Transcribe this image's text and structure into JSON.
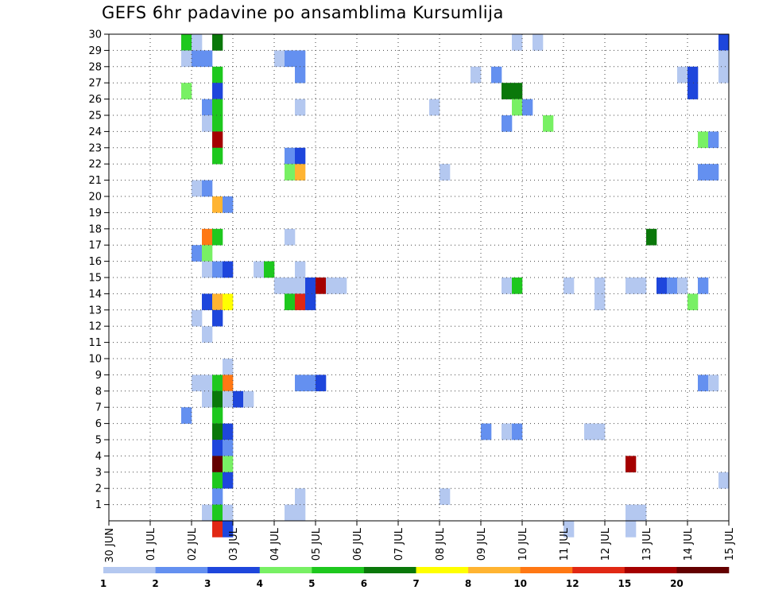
{
  "chart_data": {
    "type": "heatmap",
    "title": "GEFS 6hr padavine po ansamblima Kursumlija",
    "xlabel": "",
    "ylabel": "",
    "x_tick_labels": [
      "30 JUN",
      "01 JUL",
      "02 JUL",
      "03 JUL",
      "04 JUL",
      "05 JUL",
      "06 JUL",
      "07 JUL",
      "08 JUL",
      "09 JUL",
      "10 JUL",
      "11 JUL",
      "12 JUL",
      "13 JUL",
      "14 JUL",
      "15 JUL"
    ],
    "y_tick_labels": [
      "1",
      "2",
      "3",
      "4",
      "5",
      "6",
      "7",
      "8",
      "9",
      "10",
      "11",
      "12",
      "13",
      "14",
      "15",
      "16",
      "17",
      "18",
      "19",
      "20",
      "21",
      "22",
      "23",
      "24",
      "25",
      "26",
      "27",
      "28",
      "29",
      "30"
    ],
    "x_unit": "6-hour step from 30 JUN 00Z",
    "xlim": [
      0,
      60
    ],
    "ylim": [
      0,
      30
    ],
    "grid": true,
    "legend": "bottom",
    "colorbar_labels": [
      "1",
      "2",
      "3",
      "4",
      "5",
      "6",
      "7",
      "8",
      "10",
      "12",
      "15",
      "20"
    ],
    "colorbar_colors": [
      "#b4c8f0",
      "#6490f0",
      "#1e46dc",
      "#78f064",
      "#1ec81e",
      "#0a780a",
      "#ffff00",
      "#ffb432",
      "#ff7814",
      "#e12814",
      "#a50000",
      "#640000"
    ],
    "cells": [
      [
        7,
        30,
        4
      ],
      [
        8,
        30,
        0
      ],
      [
        10,
        30,
        5
      ],
      [
        39,
        30,
        0
      ],
      [
        41,
        30,
        0
      ],
      [
        59,
        30,
        2
      ],
      [
        7,
        29,
        0
      ],
      [
        8,
        29,
        1
      ],
      [
        9,
        29,
        1
      ],
      [
        16,
        29,
        0
      ],
      [
        17,
        29,
        1
      ],
      [
        18,
        29,
        1
      ],
      [
        59,
        29,
        0
      ],
      [
        10,
        28,
        4
      ],
      [
        18,
        28,
        1
      ],
      [
        35,
        28,
        0
      ],
      [
        37,
        28,
        1
      ],
      [
        55,
        28,
        0
      ],
      [
        56,
        28,
        2
      ],
      [
        59,
        28,
        0
      ],
      [
        7,
        27,
        3
      ],
      [
        10,
        27,
        2
      ],
      [
        38,
        27,
        5
      ],
      [
        39,
        27,
        5
      ],
      [
        56,
        27,
        2
      ],
      [
        9,
        26,
        1
      ],
      [
        10,
        26,
        4
      ],
      [
        18,
        26,
        0
      ],
      [
        31,
        26,
        0
      ],
      [
        39,
        26,
        3
      ],
      [
        40,
        26,
        1
      ],
      [
        9,
        25,
        0
      ],
      [
        10,
        25,
        4
      ],
      [
        38,
        25,
        1
      ],
      [
        42,
        25,
        3
      ],
      [
        10,
        24,
        10
      ],
      [
        57,
        24,
        3
      ],
      [
        58,
        24,
        1
      ],
      [
        10,
        23,
        4
      ],
      [
        17,
        23,
        1
      ],
      [
        18,
        23,
        2
      ],
      [
        17,
        22,
        3
      ],
      [
        18,
        22,
        7
      ],
      [
        32,
        22,
        0
      ],
      [
        57,
        22,
        1
      ],
      [
        58,
        22,
        1
      ],
      [
        8,
        21,
        0
      ],
      [
        9,
        21,
        1
      ],
      [
        10,
        20,
        7
      ],
      [
        11,
        20,
        1
      ],
      [
        9,
        18,
        8
      ],
      [
        10,
        18,
        4
      ],
      [
        17,
        18,
        0
      ],
      [
        52,
        18,
        5
      ],
      [
        8,
        17,
        1
      ],
      [
        9,
        17,
        3
      ],
      [
        9,
        16,
        0
      ],
      [
        10,
        16,
        1
      ],
      [
        11,
        16,
        2
      ],
      [
        14,
        16,
        0
      ],
      [
        15,
        16,
        4
      ],
      [
        18,
        16,
        0
      ],
      [
        16,
        15,
        0
      ],
      [
        17,
        15,
        0
      ],
      [
        18,
        15,
        0
      ],
      [
        19,
        15,
        2
      ],
      [
        20,
        15,
        10
      ],
      [
        21,
        15,
        0
      ],
      [
        22,
        15,
        0
      ],
      [
        38,
        15,
        0
      ],
      [
        39,
        15,
        4
      ],
      [
        44,
        15,
        0
      ],
      [
        47,
        15,
        0
      ],
      [
        50,
        15,
        0
      ],
      [
        51,
        15,
        0
      ],
      [
        53,
        15,
        2
      ],
      [
        54,
        15,
        1
      ],
      [
        55,
        15,
        0
      ],
      [
        57,
        15,
        1
      ],
      [
        9,
        14,
        2
      ],
      [
        10,
        14,
        7
      ],
      [
        11,
        14,
        6
      ],
      [
        17,
        14,
        4
      ],
      [
        18,
        14,
        9
      ],
      [
        19,
        14,
        2
      ],
      [
        47,
        14,
        0
      ],
      [
        56,
        14,
        3
      ],
      [
        8,
        13,
        0
      ],
      [
        10,
        13,
        2
      ],
      [
        9,
        12,
        0
      ],
      [
        11,
        10,
        0
      ],
      [
        8,
        9,
        0
      ],
      [
        9,
        9,
        0
      ],
      [
        10,
        9,
        4
      ],
      [
        11,
        9,
        8
      ],
      [
        18,
        9,
        1
      ],
      [
        19,
        9,
        1
      ],
      [
        20,
        9,
        2
      ],
      [
        57,
        9,
        1
      ],
      [
        58,
        9,
        0
      ],
      [
        9,
        8,
        0
      ],
      [
        10,
        8,
        5
      ],
      [
        11,
        8,
        0
      ],
      [
        12,
        8,
        2
      ],
      [
        13,
        8,
        0
      ],
      [
        7,
        7,
        1
      ],
      [
        10,
        7,
        4
      ],
      [
        10,
        6,
        5
      ],
      [
        11,
        6,
        2
      ],
      [
        36,
        6,
        1
      ],
      [
        38,
        6,
        0
      ],
      [
        39,
        6,
        1
      ],
      [
        46,
        6,
        0
      ],
      [
        47,
        6,
        0
      ],
      [
        10,
        5,
        2
      ],
      [
        11,
        5,
        1
      ],
      [
        10,
        4,
        11
      ],
      [
        11,
        4,
        3
      ],
      [
        50,
        4,
        10
      ],
      [
        10,
        3,
        4
      ],
      [
        11,
        3,
        2
      ],
      [
        59,
        3,
        0
      ],
      [
        10,
        2,
        1
      ],
      [
        18,
        2,
        0
      ],
      [
        32,
        2,
        0
      ],
      [
        9,
        1,
        0
      ],
      [
        10,
        1,
        4
      ],
      [
        11,
        1,
        0
      ],
      [
        17,
        1,
        0
      ],
      [
        18,
        1,
        0
      ],
      [
        50,
        1,
        0
      ],
      [
        51,
        1,
        0
      ],
      [
        10,
        0,
        9
      ],
      [
        11,
        0,
        2
      ],
      [
        44,
        0,
        0
      ],
      [
        50,
        0,
        0
      ]
    ]
  }
}
